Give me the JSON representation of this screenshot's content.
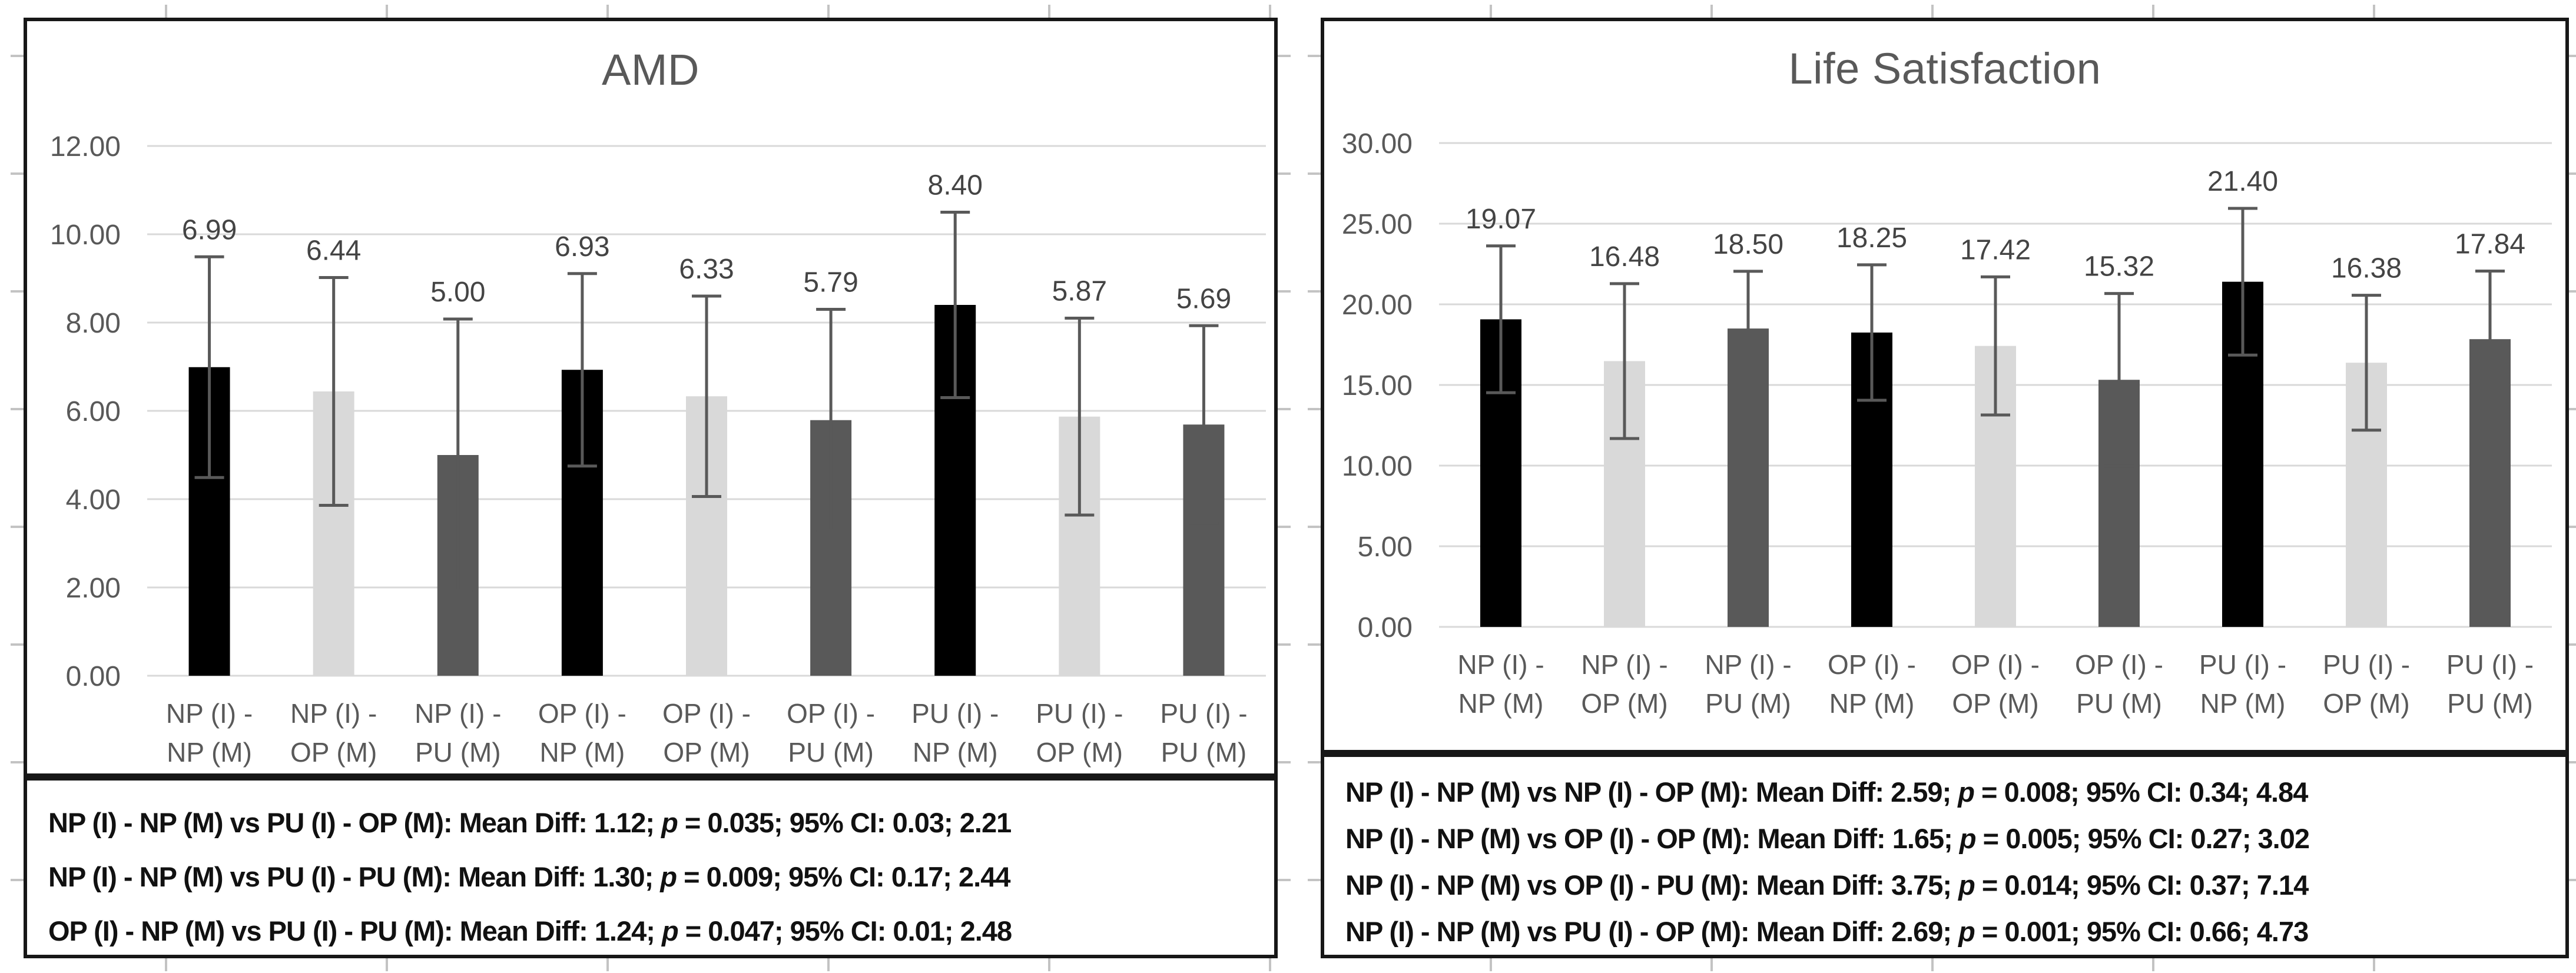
{
  "colors": {
    "background": "#ffffff",
    "panel_border": "#171717",
    "grid_line": "#d9d9d9",
    "axis_baseline": "#d9d9d9",
    "title_text": "#595959",
    "tick_text": "#595959",
    "category_text": "#595959",
    "value_label_text": "#444444",
    "error_bar": "#595959",
    "stats_text": "#111111",
    "sheet_tick": "#c3c3c3",
    "bar_color_cycle": [
      "#000000",
      "#d9d9d9",
      "#595959"
    ]
  },
  "chart_data": [
    {
      "type": "bar",
      "title": "AMD",
      "legend": "none",
      "grid": "horizontal",
      "categories": [
        "NP (I) - NP (M)",
        "NP (I) - OP (M)",
        "NP (I) - PU (M)",
        "OP (I) - NP (M)",
        "OP (I) - OP (M)",
        "OP (I) - PU (M)",
        "PU (I) - NP (M)",
        "PU (I) - OP (M)",
        "PU (I) - PU (M)"
      ],
      "category_label_lines": [
        [
          "NP (I) -",
          "NP (M)"
        ],
        [
          "NP (I) -",
          "OP (M)"
        ],
        [
          "NP (I) -",
          "PU (M)"
        ],
        [
          "OP (I) -",
          "NP (M)"
        ],
        [
          "OP (I) -",
          "OP (M)"
        ],
        [
          "OP (I) -",
          "PU (M)"
        ],
        [
          "PU (I) -",
          "NP (M)"
        ],
        [
          "PU (I) -",
          "OP (M)"
        ],
        [
          "PU (I) -",
          "PU (M)"
        ]
      ],
      "values": [
        6.99,
        6.44,
        5.0,
        6.93,
        6.33,
        5.79,
        8.4,
        5.87,
        5.69
      ],
      "value_labels": [
        "6.99",
        "6.44",
        "5.00",
        "6.93",
        "6.33",
        "5.79",
        "8.40",
        "5.87",
        "5.69"
      ],
      "error_bars_plus_minus": [
        2.5,
        2.58,
        3.08,
        2.18,
        2.27,
        2.51,
        2.1,
        2.23,
        2.24
      ],
      "ylim": [
        0,
        12
      ],
      "yticks": [
        {
          "value": 0,
          "label": "0.00"
        },
        {
          "value": 2,
          "label": "2.00"
        },
        {
          "value": 4,
          "label": "4.00"
        },
        {
          "value": 6,
          "label": "6.00"
        },
        {
          "value": 8,
          "label": "8.00"
        },
        {
          "value": 10,
          "label": "10.00"
        },
        {
          "value": 12,
          "label": "12.00"
        }
      ],
      "stats_lines": [
        "NP (I) - NP (M) vs PU (I) - OP (M): Mean Diff: 1.12; p = 0.035; 95% CI: 0.03; 2.21",
        "NP (I) - NP (M) vs PU (I) - PU (M): Mean Diff: 1.30; p = 0.009; 95% CI: 0.17; 2.44",
        "OP (I) - NP (M) vs PU (I) - PU (M): Mean Diff: 1.24; p = 0.047; 95% CI: 0.01; 2.48"
      ]
    },
    {
      "type": "bar",
      "title": "Life Satisfaction",
      "legend": "none",
      "grid": "horizontal",
      "categories": [
        "NP (I) - NP (M)",
        "NP (I) - OP (M)",
        "NP (I) - PU (M)",
        "OP (I) - NP (M)",
        "OP (I) - OP (M)",
        "OP (I) - PU (M)",
        "PU (I) - NP (M)",
        "PU (I) - OP (M)",
        "PU (I) - PU (M)"
      ],
      "category_label_lines": [
        [
          "NP (I) -",
          "NP (M)"
        ],
        [
          "NP (I) -",
          "OP (M)"
        ],
        [
          "NP (I) -",
          "PU (M)"
        ],
        [
          "OP (I) -",
          "NP (M)"
        ],
        [
          "OP (I) -",
          "OP (M)"
        ],
        [
          "OP (I) -",
          "PU (M)"
        ],
        [
          "PU (I) -",
          "NP (M)"
        ],
        [
          "PU (I) -",
          "OP (M)"
        ],
        [
          "PU (I) -",
          "PU (M)"
        ]
      ],
      "values": [
        19.07,
        16.48,
        18.5,
        18.25,
        17.42,
        15.32,
        21.4,
        16.38,
        17.84
      ],
      "value_labels": [
        "19.07",
        "16.48",
        "18.50",
        "18.25",
        "17.42",
        "15.32",
        "21.40",
        "16.38",
        "17.84"
      ],
      "error_bars_plus_minus": [
        4.55,
        4.8,
        3.55,
        4.2,
        4.28,
        5.35,
        4.55,
        4.18,
        4.22
      ],
      "ylim": [
        0,
        30
      ],
      "yticks": [
        {
          "value": 0,
          "label": "0.00"
        },
        {
          "value": 5,
          "label": "5.00"
        },
        {
          "value": 10,
          "label": "10.00"
        },
        {
          "value": 15,
          "label": "15.00"
        },
        {
          "value": 20,
          "label": "20.00"
        },
        {
          "value": 25,
          "label": "25.00"
        },
        {
          "value": 30,
          "label": "30.00"
        }
      ],
      "stats_lines": [
        "NP (I) - NP (M) vs NP (I) - OP (M): Mean Diff: 2.59; p = 0.008; 95% CI: 0.34; 4.84",
        "NP (I) - NP (M) vs OP (I) - OP (M): Mean Diff: 1.65; p = 0.005; 95% CI: 0.27; 3.02",
        "NP (I) - NP (M) vs OP (I) - PU (M): Mean Diff: 3.75; p = 0.014; 95% CI: 0.37; 7.14",
        "NP (I) - NP (M) vs PU (I) - OP (M): Mean Diff: 2.69; p = 0.001; 95% CI: 0.66; 4.73"
      ]
    }
  ]
}
